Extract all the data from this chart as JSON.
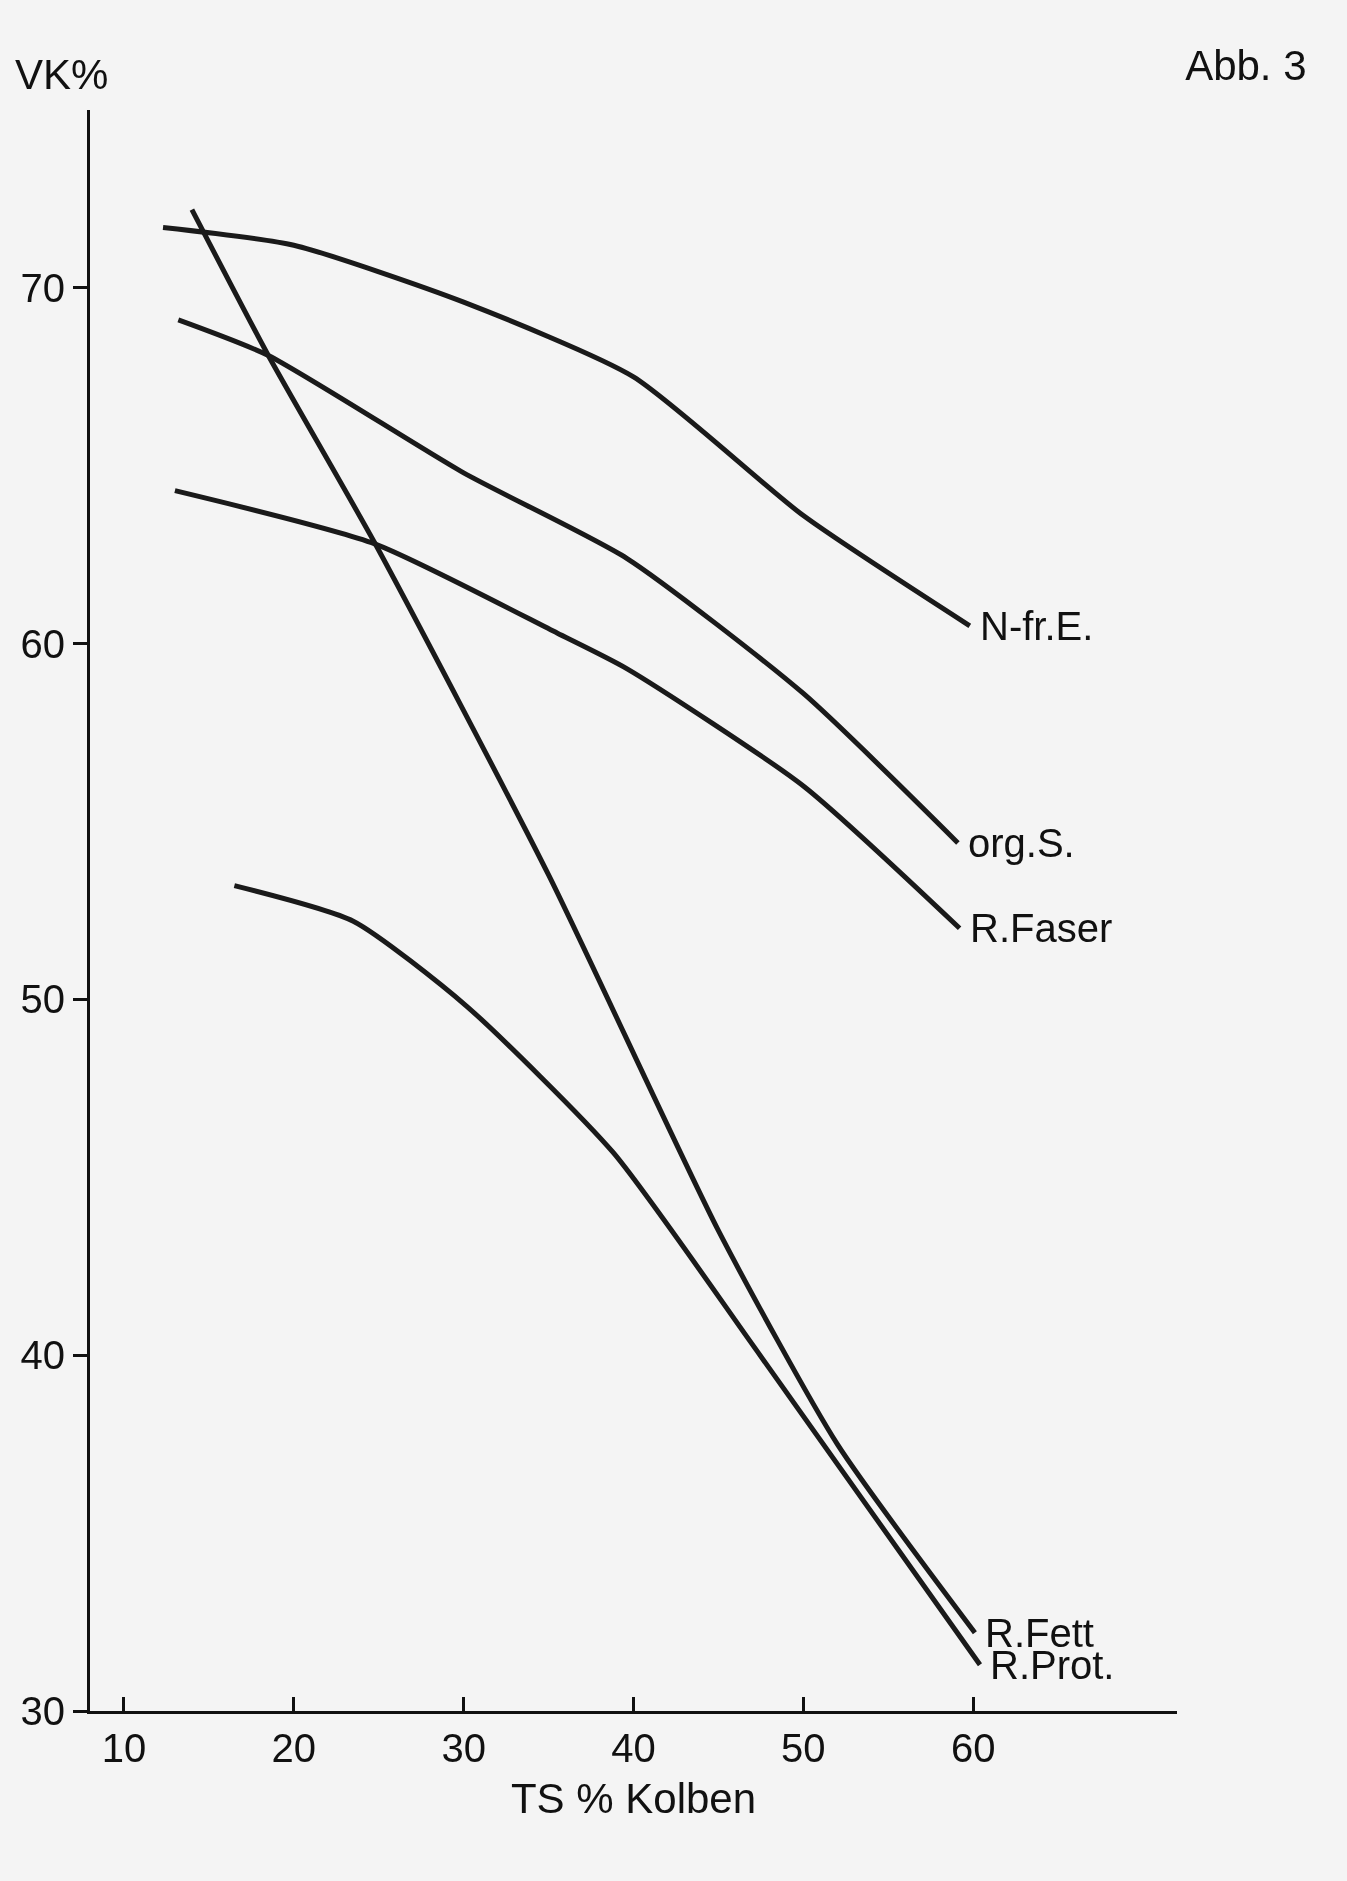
{
  "chart_data": {
    "type": "line",
    "title": "Abb. 3",
    "xlabel": "TS % Kolben",
    "ylabel": "VK%",
    "xlim": [
      8,
      72
    ],
    "xticks": [
      10,
      20,
      30,
      40,
      50,
      60
    ],
    "ylim": [
      30,
      75
    ],
    "yticks": [
      30,
      40,
      50,
      60,
      70
    ],
    "grid": false,
    "legend": false,
    "marker": "none",
    "line_style": "solid",
    "series": [
      {
        "name": "N-fr.E.",
        "color": "#1a1a1a",
        "x": [
          12.3,
          20,
          30,
          40,
          50,
          59.8
        ],
        "values": [
          71.7,
          71.2,
          69.6,
          67.5,
          63.6,
          60.5
        ]
      },
      {
        "name": "org.S.",
        "color": "#1a1a1a",
        "x": [
          13.2,
          18.5,
          30,
          39.6,
          50,
          59.1
        ],
        "values": [
          69.1,
          68.1,
          64.8,
          62.4,
          58.6,
          54.4
        ]
      },
      {
        "name": "R.Faser",
        "color": "#1a1a1a",
        "x": [
          13,
          24.8,
          35.5,
          39.6,
          50,
          59.2
        ],
        "values": [
          64.3,
          62.8,
          60.3,
          59.3,
          56,
          52.0
        ]
      },
      {
        "name": "R.Fett",
        "color": "#1a1a1a",
        "x": [
          14,
          18.5,
          24.8,
          35,
          45,
          52,
          60.1
        ],
        "values": [
          72.2,
          68.1,
          62.8,
          53.5,
          43.5,
          37.5,
          32.2
        ]
      },
      {
        "name": "R.Prot.",
        "color": "#1a1a1a",
        "x": [
          16.5,
          23.5,
          30.2,
          38.8,
          47.3,
          60.4
        ],
        "values": [
          53.2,
          52.2,
          49.8,
          45.7,
          40.1,
          31.3
        ]
      }
    ]
  }
}
